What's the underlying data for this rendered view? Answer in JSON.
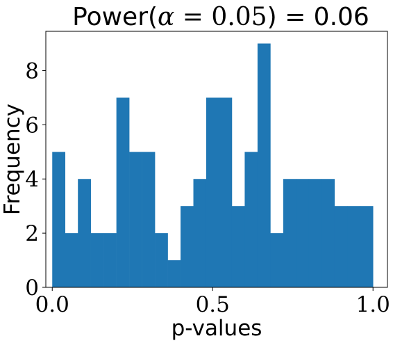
{
  "chart_data": {
    "type": "bar",
    "title": {
      "prefix": "Power(",
      "symbol": "α",
      "equals": " = ",
      "value_expr": "0.05",
      "suffix": ") = 0.06"
    },
    "xlabel": "p-values",
    "ylabel": "Frequency",
    "xlim": [
      -0.02,
      1.045
    ],
    "ylim": [
      0,
      9.45
    ],
    "xticks": [
      0.0,
      0.5,
      1.0
    ],
    "xtick_labels": [
      "0.0",
      "0.5",
      "1.0"
    ],
    "yticks": [
      0,
      2,
      4,
      6,
      8
    ],
    "ytick_labels": [
      "0",
      "2",
      "4",
      "6",
      "8"
    ],
    "bin_edges": [
      0.0,
      0.04,
      0.08,
      0.12,
      0.16,
      0.2,
      0.24,
      0.28,
      0.32,
      0.36,
      0.4,
      0.44,
      0.48,
      0.52,
      0.56,
      0.6,
      0.64,
      0.68,
      0.72,
      0.76,
      0.8,
      0.84,
      0.88,
      0.92,
      0.96,
      1.0
    ],
    "values": [
      5,
      2,
      4,
      2,
      2,
      7,
      5,
      5,
      2,
      1,
      3,
      4,
      7,
      7,
      3,
      5,
      9,
      2,
      4,
      4,
      4,
      4,
      3,
      3,
      3
    ],
    "bar_color": "#1f77b4",
    "grid": false,
    "legend": "none"
  }
}
